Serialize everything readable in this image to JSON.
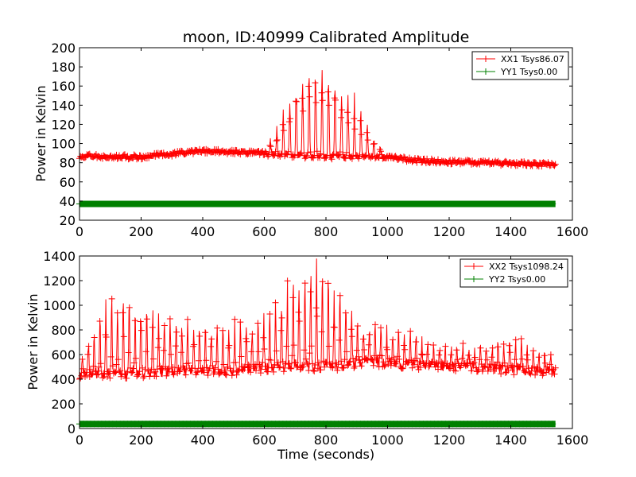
{
  "chart_data": [
    {
      "type": "line",
      "title": "moon, ID:40999 Calibrated Amplitude",
      "xlabel": "",
      "ylabel": "Power in Kelvin",
      "xlim": [
        0,
        1600
      ],
      "ylim": [
        20,
        200
      ],
      "xticks": [
        0,
        200,
        400,
        600,
        800,
        1000,
        1200,
        1400,
        1600
      ],
      "yticks": [
        20,
        40,
        60,
        80,
        100,
        120,
        140,
        160,
        180,
        200
      ],
      "grid": false,
      "legend_position": "top-right",
      "marker": "+",
      "x_range": [
        0,
        1545
      ],
      "series": [
        {
          "name": "XX1 Tsys86.07",
          "color": "#ff0000",
          "baseline_x": [
            0,
            200,
            300,
            400,
            550,
            650,
            800,
            1000,
            1100,
            1300,
            1545
          ],
          "baseline_y": [
            87,
            86,
            89,
            92,
            91,
            88,
            86,
            86,
            82,
            80,
            78
          ],
          "spike_amplitude_x": [
            600,
            650,
            700,
            750,
            780,
            800,
            850,
            900,
            950,
            1000
          ],
          "spike_amplitude_y": [
            0,
            35,
            70,
            90,
            96,
            88,
            70,
            50,
            22,
            0
          ],
          "spike_period": 21
        },
        {
          "name": "YY1 Tsys0.00",
          "color": "#008000",
          "constant_y": 37
        }
      ]
    },
    {
      "type": "line",
      "title": "",
      "xlabel": "Time (seconds)",
      "ylabel": "Power in Kelvin",
      "xlim": [
        0,
        1600
      ],
      "ylim": [
        0,
        1400
      ],
      "xticks": [
        0,
        200,
        400,
        600,
        800,
        1000,
        1200,
        1400,
        1600
      ],
      "yticks": [
        0,
        200,
        400,
        600,
        800,
        1000,
        1200,
        1400
      ],
      "grid": false,
      "legend_position": "top-right",
      "marker": "+",
      "x_range": [
        0,
        1545
      ],
      "series": [
        {
          "name": "XX2 Tsys1098.24",
          "color": "#ff0000",
          "baseline_x": [
            0,
            100,
            300,
            500,
            650,
            800,
            950,
            1200,
            1545
          ],
          "baseline_y": [
            440,
            440,
            460,
            470,
            500,
            500,
            540,
            500,
            460
          ],
          "spike_amplitude_x": [
            0,
            40,
            100,
            140,
            200,
            300,
            400,
            500,
            600,
            650,
            700,
            760,
            800,
            850,
            900,
            1000,
            1100,
            1200,
            1300,
            1400,
            1545
          ],
          "spike_amplitude_y": [
            200,
            300,
            600,
            620,
            480,
            430,
            350,
            320,
            360,
            520,
            680,
            800,
            720,
            500,
            330,
            240,
            220,
            150,
            160,
            240,
            120
          ],
          "spike_period": 19
        },
        {
          "name": "YY2 Tsys0.00",
          "color": "#008000",
          "constant_y": 37
        }
      ]
    }
  ]
}
